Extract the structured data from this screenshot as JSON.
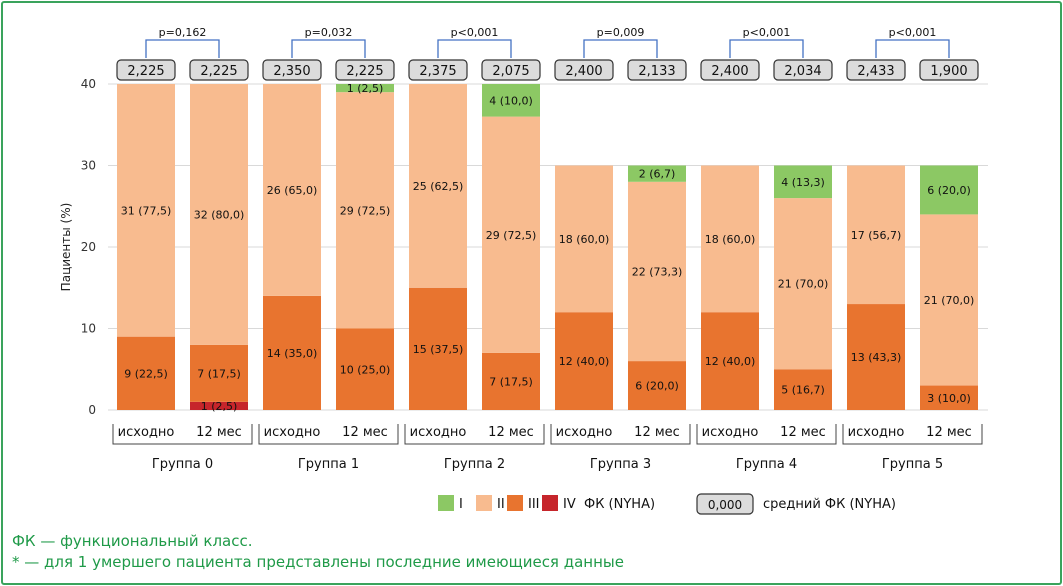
{
  "chart_data": {
    "type": "bar",
    "stacked": true,
    "ylabel": "Пациенты (%)",
    "ylim": [
      0,
      40
    ],
    "yticks": [
      "0",
      "10",
      "20",
      "30",
      "40"
    ],
    "grid": true,
    "groups": [
      {
        "label": "Группа 0",
        "p": "p=0,162",
        "bars": [
          {
            "label": "исходно",
            "mean": "2,225",
            "segments": [
              {
                "cls": "III",
                "value": 9,
                "text": "9 (22,5)"
              },
              {
                "cls": "II",
                "value": 31,
                "text": "31 (77,5)"
              }
            ]
          },
          {
            "label": "12 мес",
            "mean": "2,225",
            "segments": [
              {
                "cls": "IV",
                "value": 1,
                "text": "1 (2,5)"
              },
              {
                "cls": "III",
                "value": 7,
                "text": "7 (17,5)"
              },
              {
                "cls": "II",
                "value": 32,
                "text": "32 (80,0)"
              }
            ]
          }
        ]
      },
      {
        "label": "Группа 1",
        "p": "p=0,032",
        "bars": [
          {
            "label": "исходно",
            "mean": "2,350",
            "segments": [
              {
                "cls": "III",
                "value": 14,
                "text": "14 (35,0)"
              },
              {
                "cls": "II",
                "value": 26,
                "text": "26 (65,0)"
              }
            ]
          },
          {
            "label": "12 мес",
            "mean": "2,225",
            "segments": [
              {
                "cls": "III",
                "value": 10,
                "text": "10 (25,0)"
              },
              {
                "cls": "II",
                "value": 29,
                "text": "29 (72,5)"
              },
              {
                "cls": "I",
                "value": 1,
                "text": "1 (2,5)"
              }
            ]
          }
        ]
      },
      {
        "label": "Группа 2",
        "p": "p<0,001",
        "bars": [
          {
            "label": "исходно",
            "mean": "2,375",
            "segments": [
              {
                "cls": "III",
                "value": 15,
                "text": "15 (37,5)"
              },
              {
                "cls": "II",
                "value": 25,
                "text": "25 (62,5)"
              }
            ]
          },
          {
            "label": "12 мес",
            "mean": "2,075",
            "segments": [
              {
                "cls": "III",
                "value": 7,
                "text": "7 (17,5)"
              },
              {
                "cls": "II",
                "value": 29,
                "text": "29 (72,5)"
              },
              {
                "cls": "I",
                "value": 4,
                "text": "4 (10,0)"
              }
            ]
          }
        ]
      },
      {
        "label": "Группа 3",
        "p": "p=0,009",
        "bars": [
          {
            "label": "исходно",
            "mean": "2,400",
            "segments": [
              {
                "cls": "III",
                "value": 12,
                "text": "12 (40,0)"
              },
              {
                "cls": "II",
                "value": 18,
                "text": "18 (60,0)"
              }
            ]
          },
          {
            "label": "12 мес",
            "mean": "2,133",
            "segments": [
              {
                "cls": "III",
                "value": 6,
                "text": "6 (20,0)"
              },
              {
                "cls": "II",
                "value": 22,
                "text": "22 (73,3)"
              },
              {
                "cls": "I",
                "value": 2,
                "text": "2 (6,7)"
              }
            ]
          }
        ]
      },
      {
        "label": "Группа 4",
        "p": "p<0,001",
        "bars": [
          {
            "label": "исходно",
            "mean": "2,400",
            "segments": [
              {
                "cls": "III",
                "value": 12,
                "text": "12 (40,0)"
              },
              {
                "cls": "II",
                "value": 18,
                "text": "18 (60,0)"
              }
            ]
          },
          {
            "label": "12 мес",
            "mean": "2,034",
            "segments": [
              {
                "cls": "III",
                "value": 5,
                "text": "5 (16,7)"
              },
              {
                "cls": "II",
                "value": 21,
                "text": "21 (70,0)"
              },
              {
                "cls": "I",
                "value": 4,
                "text": "4 (13,3)"
              }
            ]
          }
        ]
      },
      {
        "label": "Группа 5",
        "p": "p<0,001",
        "bars": [
          {
            "label": "исходно",
            "mean": "2,433",
            "segments": [
              {
                "cls": "III",
                "value": 13,
                "text": "13 (43,3)"
              },
              {
                "cls": "II",
                "value": 17,
                "text": "17 (56,7)"
              }
            ]
          },
          {
            "label": "12 мес",
            "mean": "1,900",
            "segments": [
              {
                "cls": "III",
                "value": 3,
                "text": "3 (10,0)"
              },
              {
                "cls": "II",
                "value": 21,
                "text": "21 (70,0)"
              },
              {
                "cls": "I",
                "value": 6,
                "text": "6 (20,0)"
              }
            ]
          }
        ]
      }
    ],
    "legend": {
      "classes": [
        "I",
        "II",
        "III",
        "IV"
      ],
      "classes_title": "ФК (NYHA)",
      "mean_box_text": "0,000",
      "mean_title": "средний ФК (NYHA)",
      "placement": "bottom-right"
    },
    "colors": {
      "I": "#8cc864",
      "II": "#f8bb8f",
      "III": "#e8742f",
      "IV": "#c6252b"
    }
  },
  "colors": {
    "frame": "#3aa35c",
    "footnote": "#1f9a48",
    "bracket": "#4472c4",
    "mean_box": "#dcdcdc",
    "grid": "#d9d9d9"
  },
  "footnotes": [
    "ФК — функциональный класс.",
    "* — для 1 умершего пациента представлены последние имеющиеся данные"
  ]
}
